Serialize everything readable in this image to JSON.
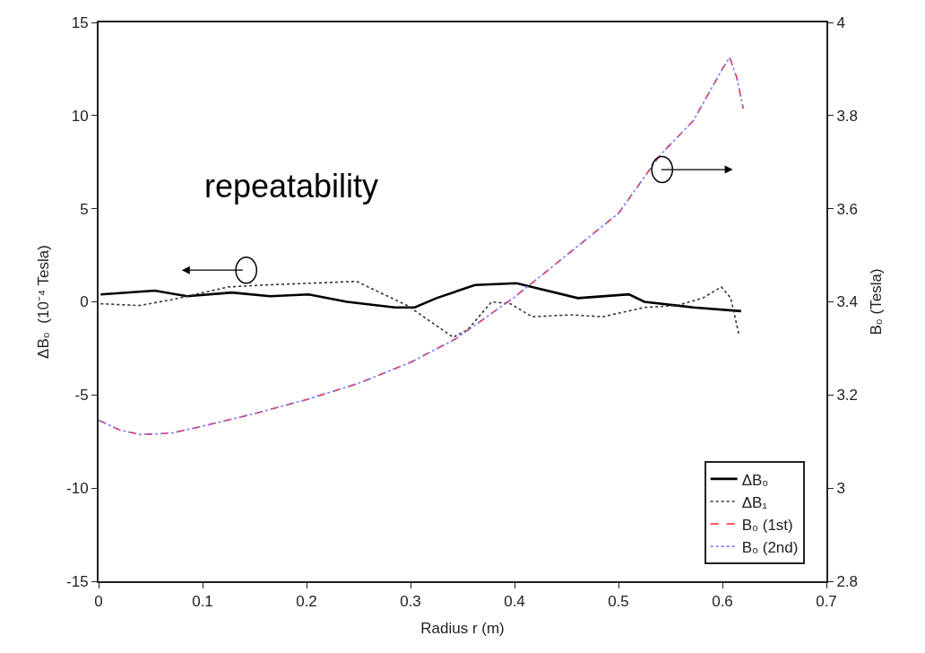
{
  "chart_data": {
    "type": "line",
    "xlabel": "Radius r (m)",
    "ylabel": "ΔB₀  (10⁻⁴ Tesla)",
    "y2label": "B₀ (Tesla)",
    "xlim": [
      0,
      0.7
    ],
    "xticks": [
      0,
      0.1,
      0.2,
      0.3,
      0.4,
      0.5,
      0.6,
      0.7
    ],
    "ylim": [
      -15,
      15
    ],
    "yticks": [
      -15,
      -10,
      -5,
      0,
      5,
      10,
      15
    ],
    "y2lim": [
      2.8,
      4
    ],
    "y2ticks": [
      2.8,
      3,
      3.2,
      3.4,
      3.6,
      3.8,
      4
    ],
    "legend": "bottom right",
    "marker": "none",
    "annotations": [
      "repeatability"
    ],
    "series": [
      {
        "name": "ΔB₀",
        "color": "#000000",
        "line_style": "solid",
        "x": [
          0.002,
          0.054,
          0.085,
          0.128,
          0.165,
          0.202,
          0.239,
          0.285,
          0.304,
          0.325,
          0.362,
          0.402,
          0.417,
          0.461,
          0.51,
          0.525,
          0.572,
          0.618
        ],
        "values": [
          0.4,
          0.6,
          0.3,
          0.5,
          0.3,
          0.4,
          0,
          -0.3,
          -0.3,
          0.2,
          0.9,
          1.0,
          0.8,
          0.2,
          0.4,
          0,
          -0.3,
          -0.5
        ]
      },
      {
        "name": "ΔB₁",
        "color": "#333333",
        "line_style": "dotted",
        "x": [
          0.002,
          0.039,
          0.069,
          0.125,
          0.159,
          0.248,
          0.297,
          0.341,
          0.355,
          0.378,
          0.396,
          0.417,
          0.454,
          0.485,
          0.525,
          0.556,
          0.581,
          0.599,
          0.608,
          0.616
        ],
        "values": [
          -0.1,
          -0.2,
          0.1,
          0.8,
          0.9,
          1.1,
          -0.2,
          -1.9,
          -1.5,
          0,
          -0.1,
          -0.8,
          -0.7,
          -0.8,
          -0.3,
          -0.2,
          0.2,
          0.8,
          0.2,
          -1.8
        ]
      },
      {
        "name": "B₀ (1st)",
        "color": "#ff2020",
        "line_style": "dashed",
        "axis": "y2",
        "x": [
          0,
          0.02,
          0.04,
          0.07,
          0.1,
          0.15,
          0.2,
          0.25,
          0.3,
          0.343,
          0.4,
          0.45,
          0.5,
          0.54,
          0.572,
          0.6,
          0.607,
          0.614,
          0.62
        ],
        "values": [
          3.146,
          3.125,
          3.115,
          3.118,
          3.133,
          3.16,
          3.19,
          3.225,
          3.27,
          3.32,
          3.41,
          3.5,
          3.59,
          3.715,
          3.789,
          3.9,
          3.925,
          3.88,
          3.815
        ]
      },
      {
        "name": "B₀ (2nd)",
        "color": "#8080ff",
        "line_style": "dotted",
        "axis": "y2",
        "x": [
          0,
          0.02,
          0.04,
          0.07,
          0.1,
          0.15,
          0.2,
          0.25,
          0.3,
          0.343,
          0.4,
          0.45,
          0.5,
          0.54,
          0.572,
          0.6,
          0.607,
          0.614,
          0.62
        ],
        "values": [
          3.146,
          3.125,
          3.115,
          3.118,
          3.133,
          3.16,
          3.19,
          3.225,
          3.27,
          3.32,
          3.41,
          3.5,
          3.59,
          3.715,
          3.789,
          3.9,
          3.925,
          3.88,
          3.815
        ]
      }
    ]
  }
}
